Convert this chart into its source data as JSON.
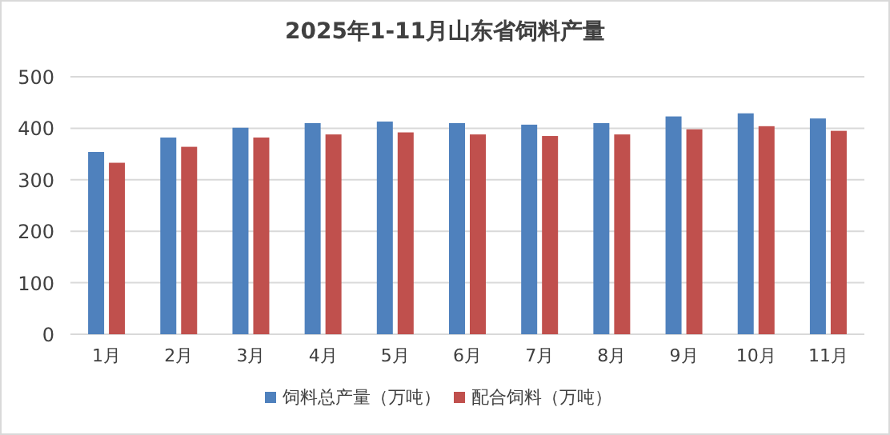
{
  "chart_data": {
    "type": "bar",
    "title": "2025年1-11月山东省饲料产量",
    "categories": [
      "1月",
      "2月",
      "3月",
      "4月",
      "5月",
      "6月",
      "7月",
      "8月",
      "9月",
      "10月",
      "11月"
    ],
    "series": [
      {
        "name": "饲料总产量（万吨）",
        "color": "#4f81bd",
        "values": [
          354,
          382,
          401,
          410,
          413,
          410,
          407,
          410,
          423,
          429,
          419
        ]
      },
      {
        "name": "配合饲料（万吨）",
        "color": "#c0504d",
        "values": [
          333,
          364,
          382,
          388,
          392,
          388,
          385,
          388,
          398,
          404,
          395
        ]
      }
    ],
    "ylim": [
      0,
      500
    ],
    "yticks": [
      0,
      100,
      200,
      300,
      400,
      500
    ],
    "grid": "y",
    "legend": "bottom"
  }
}
